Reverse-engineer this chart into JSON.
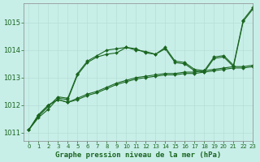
{
  "bg_color": "#c8eee8",
  "grid_color": "#b8ddd8",
  "line_color": "#1a6620",
  "title": "Graphe pression niveau de la mer (hPa)",
  "xlim": [
    -0.5,
    23
  ],
  "ylim": [
    1010.7,
    1015.7
  ],
  "yticks": [
    1011,
    1012,
    1013,
    1014,
    1015
  ],
  "xticks": [
    0,
    1,
    2,
    3,
    4,
    5,
    6,
    7,
    8,
    9,
    10,
    11,
    12,
    13,
    14,
    15,
    16,
    17,
    18,
    19,
    20,
    21,
    22,
    23
  ],
  "series": [
    [
      1011.1,
      1011.55,
      1011.85,
      1012.25,
      1012.2,
      1013.1,
      1013.55,
      1013.75,
      1013.85,
      1013.9,
      1014.1,
      1014.05,
      1013.9,
      1013.85,
      1014.1,
      1013.6,
      1013.55,
      1013.3,
      1013.25,
      1013.75,
      1013.8,
      1013.45,
      1015.1,
      1015.55
    ],
    [
      1011.1,
      1011.6,
      1011.95,
      1012.3,
      1012.25,
      1013.15,
      1013.6,
      1013.8,
      1014.0,
      1014.05,
      1014.1,
      1014.0,
      1013.95,
      1013.85,
      1014.05,
      1013.55,
      1013.5,
      1013.25,
      1013.2,
      1013.7,
      1013.75,
      1013.4,
      1015.05,
      1015.5
    ],
    [
      1011.1,
      1011.65,
      1012.0,
      1012.2,
      1012.1,
      1012.2,
      1012.35,
      1012.45,
      1012.6,
      1012.75,
      1012.85,
      1012.95,
      1013.0,
      1013.05,
      1013.1,
      1013.1,
      1013.15,
      1013.15,
      1013.2,
      1013.25,
      1013.3,
      1013.35,
      1013.35,
      1013.4
    ],
    [
      1011.1,
      1011.65,
      1012.0,
      1012.2,
      1012.1,
      1012.25,
      1012.4,
      1012.5,
      1012.65,
      1012.8,
      1012.9,
      1013.0,
      1013.05,
      1013.1,
      1013.15,
      1013.15,
      1013.2,
      1013.2,
      1013.25,
      1013.3,
      1013.35,
      1013.4,
      1013.4,
      1013.45
    ]
  ]
}
